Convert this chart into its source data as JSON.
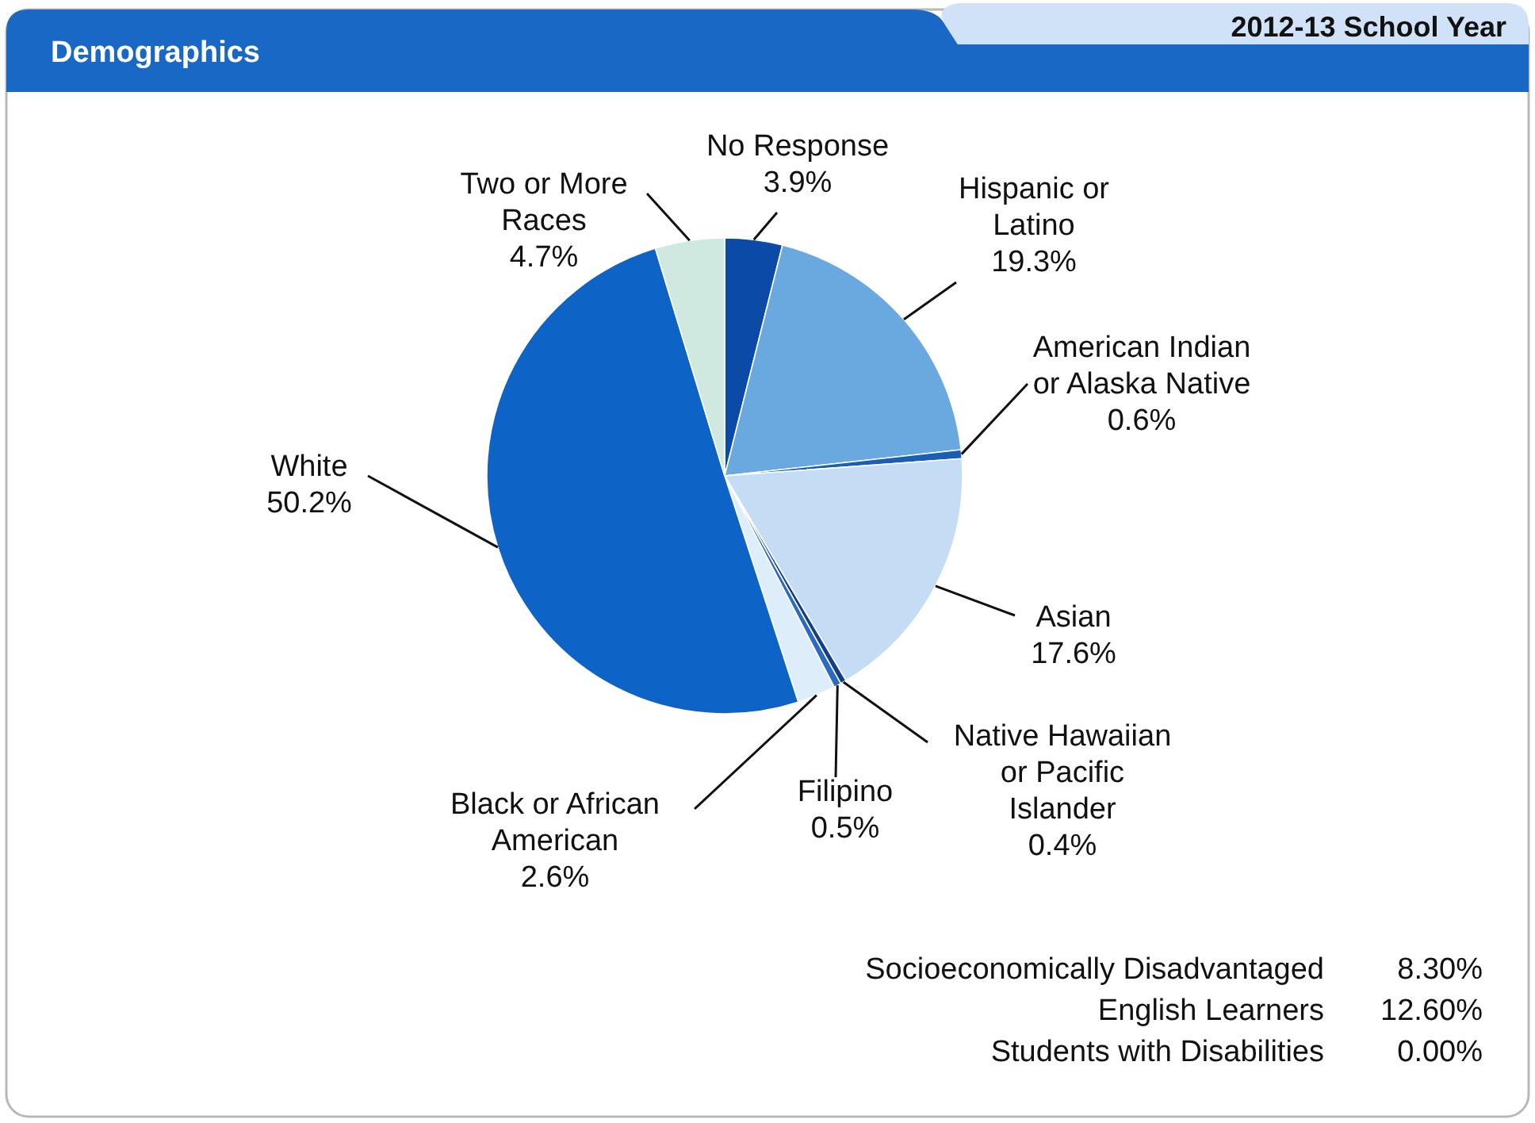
{
  "chart_data": {
    "type": "pie",
    "title": "Demographics",
    "subtitle": "2012-13 School Year",
    "categories": [
      "No Response",
      "Hispanic or Latino",
      "American Indian or Alaska Native",
      "Asian",
      "Native Hawaiian or Pacific Islander",
      "Filipino",
      "Black or African American",
      "White",
      "Two or More Races"
    ],
    "values": [
      3.9,
      19.3,
      0.6,
      17.6,
      0.4,
      0.5,
      2.6,
      50.2,
      4.7
    ],
    "value_labels": [
      "3.9%",
      "19.3%",
      "0.6%",
      "17.6%",
      "0.4%",
      "0.5%",
      "2.6%",
      "50.2%",
      "4.7%"
    ],
    "colors": [
      "#0b4aa6",
      "#6aa8e0",
      "#1a5fb4",
      "#c5dcf5",
      "#123f8a",
      "#2a6ac0",
      "#ddeefa",
      "#0d63c6",
      "#cfe8e0"
    ],
    "annotations": [
      "Socioeconomically Disadvantaged 8.30%",
      "English Learners 12.60%",
      "Students with Disabilities 0.00%"
    ]
  }
}
